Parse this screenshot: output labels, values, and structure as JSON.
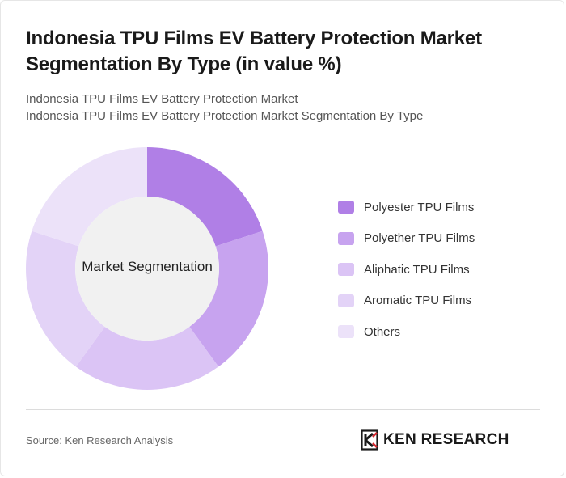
{
  "header": {
    "title_line1": "Indonesia TPU Films EV Battery Protection Market",
    "title_line2": "Segmentation By Type (in value %)",
    "subtitle_line1": "Indonesia TPU Films EV Battery Protection Market",
    "subtitle_line2": "Indonesia TPU Films EV Battery Protection Market Segmentation By Type"
  },
  "chart_data": {
    "type": "pie",
    "center_label": "Market Segmentation",
    "categories": [
      "Polyester TPU Films",
      "Polyether TPU Films",
      "Aliphatic TPU Films",
      "Aromatic TPU Films",
      "Others"
    ],
    "values": [
      20,
      20,
      20,
      20,
      20
    ],
    "colors": [
      "#b07fe6",
      "#c7a3ef",
      "#dbc4f5",
      "#e3d3f7",
      "#ece2f9"
    ],
    "legend_position": "right"
  },
  "footer": {
    "source": "Source: Ken Research Analysis",
    "logo_text": "KEN RESEARCH"
  }
}
